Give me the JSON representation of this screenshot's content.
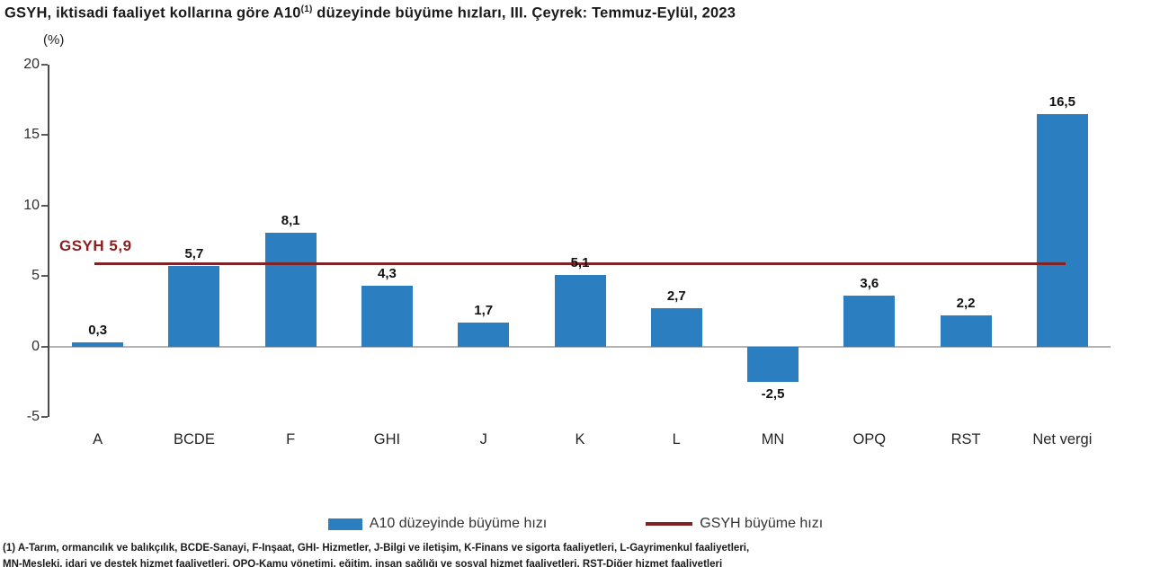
{
  "title": {
    "prefix": "GSYH, iktisadi faaliyet kollarına göre A10",
    "sup": "(1)",
    "suffix": " düzeyinde büyüme hızları, III. Çeyrek: Temmuz-Eylül, 2023"
  },
  "unit_label": "(%)",
  "chart_data": {
    "type": "bar",
    "title": "GSYH, iktisadi faaliyet kollarına göre A10(1) düzeyinde büyüme hızları, III. Çeyrek: Temmuz-Eylül, 2023",
    "categories": [
      "A",
      "BCDE",
      "F",
      "GHI",
      "J",
      "K",
      "L",
      "MN",
      "OPQ",
      "RST",
      "Net vergi"
    ],
    "values": [
      0.3,
      5.7,
      8.1,
      4.3,
      1.7,
      5.1,
      2.7,
      -2.5,
      3.6,
      2.2,
      16.5
    ],
    "value_labels": [
      "0,3",
      "5,7",
      "8,1",
      "4,3",
      "1,7",
      "5,1",
      "2,7",
      "-2,5",
      "3,6",
      "2,2",
      "16,5"
    ],
    "xlabel": "",
    "ylabel": "(%)",
    "ylim": [
      -5,
      20
    ],
    "yticks": [
      20,
      15,
      10,
      5,
      0,
      -5
    ],
    "grid": false,
    "bar_color": "#2b7fc0",
    "reference_line": {
      "value": 5.9,
      "label": "GSYH 5,9",
      "color": "#7f2326",
      "label_color": "#8b1f1f"
    },
    "legend": {
      "position": "bottom",
      "entries": [
        {
          "label": "A10 düzeyinde büyüme hızı",
          "type": "bar",
          "color": "#2b7fc0"
        },
        {
          "label": "GSYH büyüme hızı",
          "type": "line",
          "color": "#7f2326"
        }
      ]
    }
  },
  "footnotes": {
    "line1": "(1) A-Tarım, ormancılık ve balıkçılık, BCDE-Sanayi, F-İnşaat, GHI- Hizmetler, J-Bilgi ve iletişim, K-Finans ve sigorta faaliyetleri, L-Gayrimenkul faaliyetleri,",
    "line2": "MN-Mesleki, idari ve destek hizmet faaliyetleri, OPQ-Kamu yönetimi, eğitim, insan sağlığı ve sosyal hizmet faaliyetleri, RST-Diğer hizmet faaliyetleri"
  },
  "colors": {
    "bar": "#2b7fc0",
    "reference_line": "#7f2326",
    "reference_text": "#8b1f1f",
    "axis": "#4a4a4a",
    "baseline": "#b3b3b3",
    "text": "#1a1a1a"
  }
}
